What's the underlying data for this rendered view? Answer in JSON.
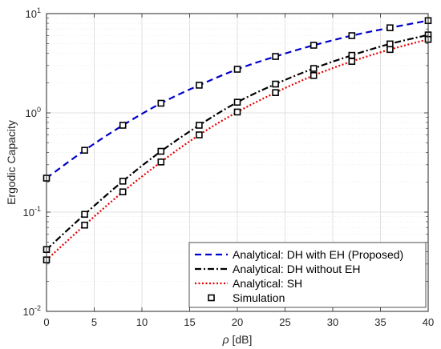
{
  "chart_data": {
    "type": "line",
    "xlabel_symbol": "ρ",
    "xlabel_unit": " [dB]",
    "ylabel": "Ergodic Capacity",
    "xlim": [
      0,
      40
    ],
    "ylim": [
      0.01,
      10
    ],
    "yscale": "log",
    "grid": true,
    "legend_position": "bottom-right",
    "x_ticks": [
      "0",
      "5",
      "10",
      "15",
      "20",
      "25",
      "30",
      "35",
      "40"
    ],
    "y_ticks": [
      {
        "base": "10",
        "exp": "-2"
      },
      {
        "base": "10",
        "exp": "-1"
      },
      {
        "base": "10",
        "exp": "0"
      },
      {
        "base": "10",
        "exp": "1"
      }
    ],
    "x": [
      0,
      4,
      8,
      12,
      16,
      20,
      24,
      28,
      32,
      36,
      40
    ],
    "series": [
      {
        "name": "Analytical: DH with EH (Proposed)",
        "color": "#0000cc",
        "style": "dashed",
        "values": [
          0.22,
          0.42,
          0.75,
          1.25,
          1.9,
          2.75,
          3.7,
          4.8,
          6.0,
          7.2,
          8.5
        ]
      },
      {
        "name": "Analytical: DH without EH",
        "color": "#000000",
        "style": "dashdot",
        "values": [
          0.042,
          0.095,
          0.205,
          0.41,
          0.75,
          1.28,
          1.95,
          2.8,
          3.8,
          4.95,
          6.1
        ]
      },
      {
        "name": "Analytical: SH",
        "color": "#e60000",
        "style": "dotted",
        "values": [
          0.033,
          0.074,
          0.16,
          0.32,
          0.6,
          1.02,
          1.6,
          2.38,
          3.3,
          4.35,
          5.5
        ]
      }
    ],
    "markers": {
      "name": "Simulation",
      "color": "#000000",
      "shape": "square"
    }
  }
}
